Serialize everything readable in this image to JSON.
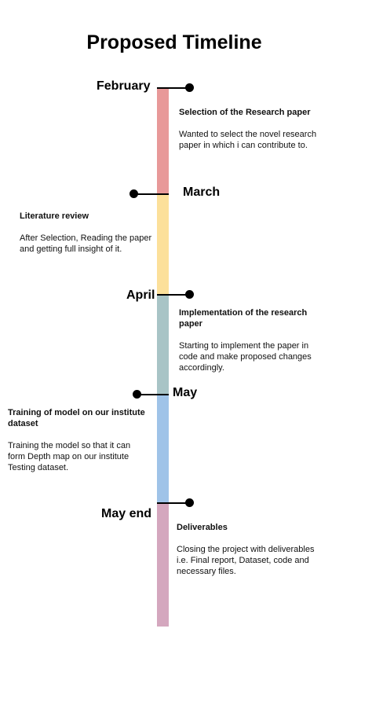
{
  "title": "Proposed Timeline",
  "colors": {
    "february": "#E89999",
    "march": "#FCE09A",
    "april": "#A8C4C6",
    "may": "#9FC3E8",
    "may_end": "#D4A7BE"
  },
  "milestones": [
    {
      "month": "February",
      "heading": "Selection of the Research paper",
      "description": "Wanted to select the novel research paper in which i can contribute to."
    },
    {
      "month": "March",
      "heading": "Literature review",
      "description": "After Selection, Reading the paper and getting full insight of it."
    },
    {
      "month": "April",
      "heading": "Implementation of the research paper",
      "description": "Starting to  implement the paper in code and make proposed changes accordingly."
    },
    {
      "month": "May",
      "heading": "Training of model on our institute dataset",
      "description": "Training the model so that it can form Depth map on our institute Testing dataset."
    },
    {
      "month": "May end",
      "heading": "Deliverables",
      "description": "Closing the project with deliverables i.e. Final report, Dataset, code and necessary files."
    }
  ]
}
